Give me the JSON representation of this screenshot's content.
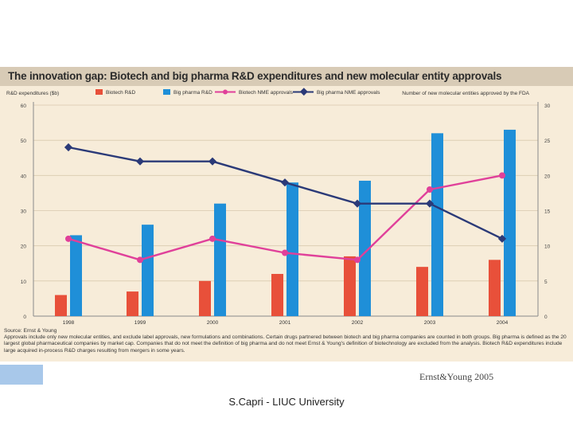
{
  "chart_data": {
    "type": "bar",
    "title": "The innovation gap: Biotech and big pharma R&D expenditures and new molecular entity approvals",
    "ylabel_left": "R&D expenditures ($b)",
    "ylabel_right": "Number of new molecular entities approved by the FDA",
    "categories": [
      "1998",
      "1999",
      "2000",
      "2001",
      "2002",
      "2003",
      "2004"
    ],
    "left_axis": {
      "ylim": [
        0,
        60
      ],
      "ticks": [
        "0",
        "10",
        "20",
        "30",
        "40",
        "50",
        "60"
      ]
    },
    "right_axis": {
      "ylim": [
        0,
        30
      ],
      "ticks": [
        "0",
        "5",
        "10",
        "15",
        "20",
        "25",
        "30"
      ]
    },
    "series": [
      {
        "name": "Biotech R&D",
        "type": "bar",
        "axis": "left",
        "color": "#e8503a",
        "values": [
          6,
          7,
          10,
          12,
          17,
          14,
          16
        ]
      },
      {
        "name": "Big pharma R&D",
        "type": "bar",
        "axis": "left",
        "color": "#1f8fd8",
        "values": [
          23,
          26,
          32,
          38,
          38.5,
          52,
          53
        ]
      },
      {
        "name": "Biotech NME approvals",
        "type": "line",
        "axis": "right",
        "color": "#e0409a",
        "values": [
          11,
          8,
          11,
          9,
          8,
          18,
          20
        ]
      },
      {
        "name": "Big pharma NME approvals",
        "type": "line",
        "axis": "right",
        "color": "#2b3a78",
        "values": [
          24,
          22,
          22,
          19,
          16,
          16,
          11
        ]
      }
    ]
  },
  "notes": {
    "source": "Source: Ernst & Young",
    "text": "Approvals include only new molecular entities, and exclude label approvals, new formulations and combinations. Certain drugs partnered between biotech and big pharma companies are counted in both groups. Big pharma is defined as the 20 largest global pharmaceutical companies by market cap. Companies that do not meet the definition of big pharma and do not meet Ernst & Young's definition of biotechnology are excluded from the analysis. Biotech R&D expenditures include large acquired in-process R&D charges resulting from mergers in some years."
  },
  "credit": "Ernst&Young  2005",
  "footer": "S.Capri - LIUC University",
  "colors": {
    "background": "#f7ecd9",
    "title_bar": "#d8cbb6",
    "grid": "#d9c9ae"
  }
}
